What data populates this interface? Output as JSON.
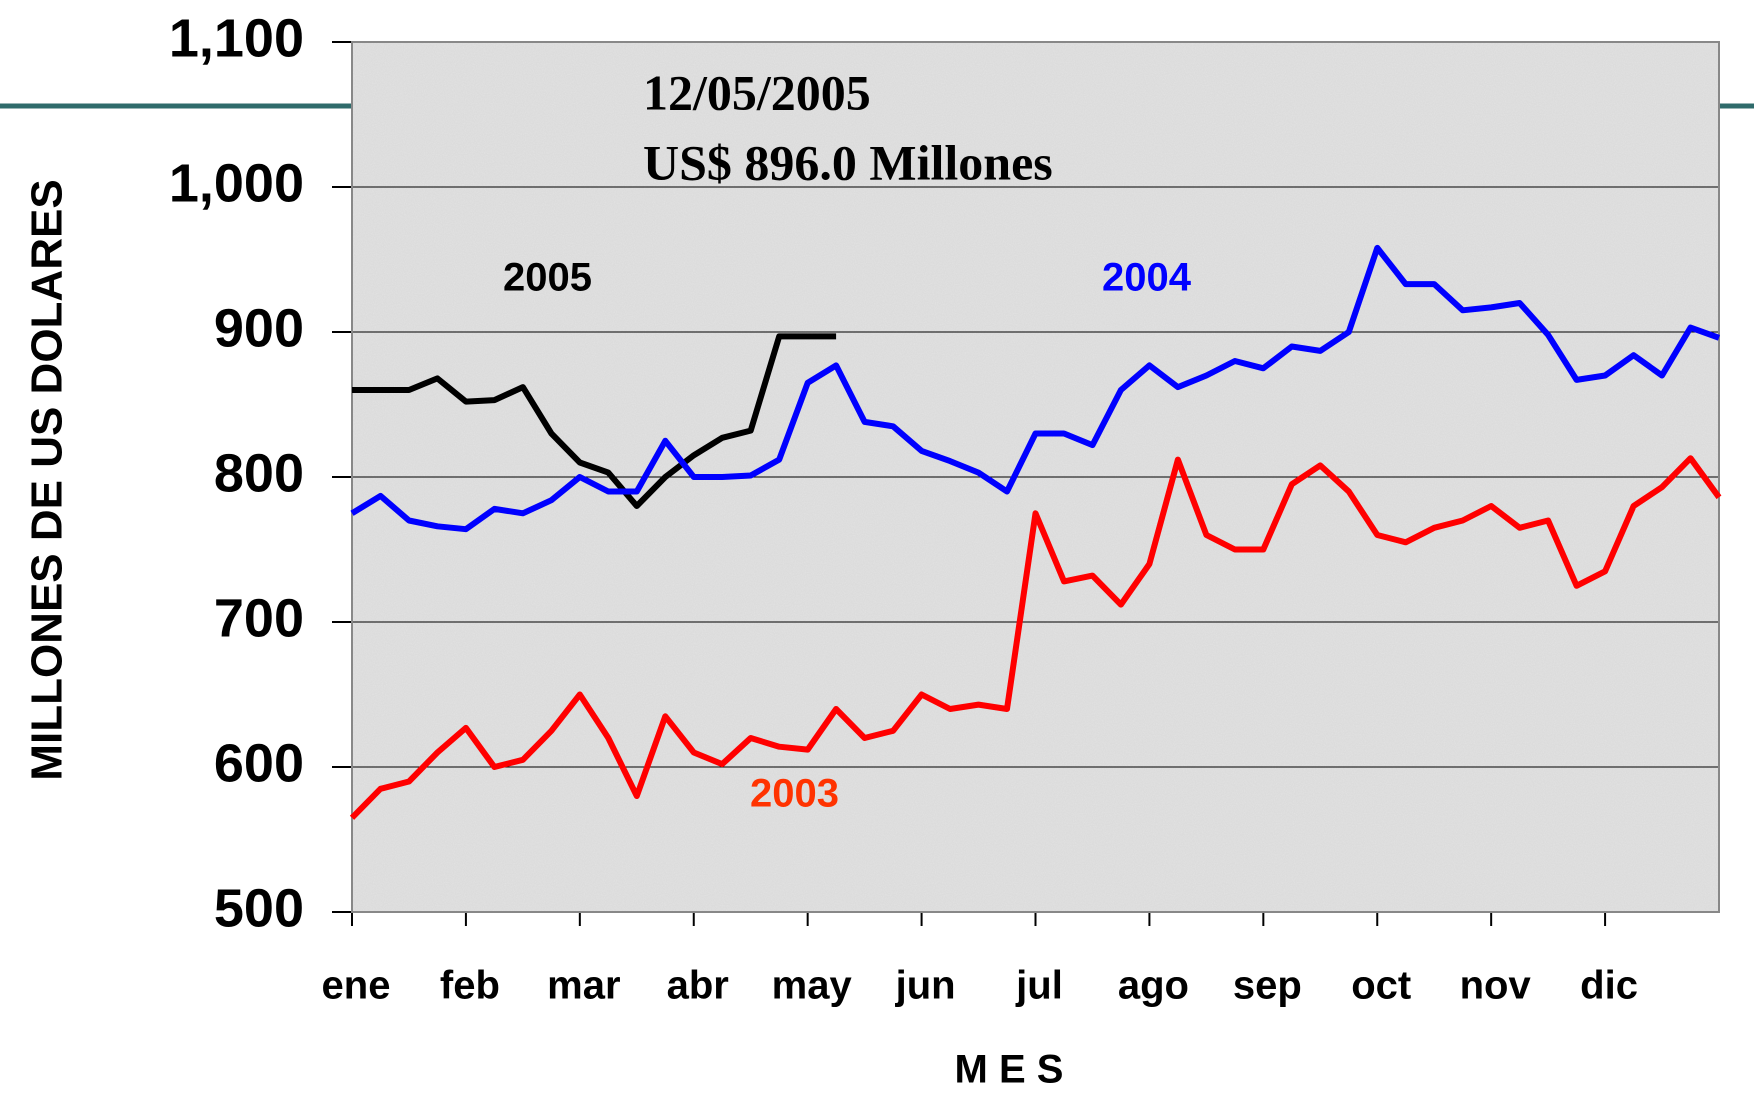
{
  "chart_data": {
    "type": "line",
    "title": "12/05/2005",
    "subtitle": "US$ 896.0 Millones",
    "y_label": "MILLONES DE US DOLARES",
    "x_label": "M E S",
    "categories": [
      "ene",
      null,
      null,
      null,
      "feb",
      null,
      null,
      null,
      "mar",
      null,
      null,
      null,
      "abr",
      null,
      null,
      null,
      "may",
      null,
      null,
      null,
      "jun",
      null,
      null,
      null,
      "jul",
      null,
      null,
      null,
      "ago",
      null,
      null,
      null,
      "sep",
      null,
      null,
      null,
      "oct",
      null,
      null,
      null,
      "nov",
      null,
      null,
      null,
      "dic",
      null,
      null,
      null,
      null
    ],
    "series": [
      {
        "name": "2005",
        "color": "#000000",
        "values": [
          860,
          860,
          860,
          868,
          852,
          853,
          862,
          830,
          810,
          803,
          780,
          800,
          815,
          827,
          832,
          897,
          897,
          897,
          null,
          null,
          null,
          null,
          null,
          null,
          null,
          null,
          null,
          null,
          null,
          null,
          null,
          null,
          null,
          null,
          null,
          null,
          null,
          null,
          null,
          null,
          null,
          null,
          null,
          null,
          null,
          null,
          null,
          null,
          null
        ]
      },
      {
        "name": "2004",
        "color": "#0000ff",
        "values": [
          775,
          787,
          770,
          766,
          764,
          778,
          775,
          784,
          800,
          790,
          790,
          825,
          800,
          800,
          801,
          812,
          865,
          877,
          838,
          835,
          818,
          811,
          803,
          790,
          830,
          830,
          822,
          860,
          877,
          862,
          870,
          880,
          875,
          890,
          887,
          900,
          958,
          933,
          933,
          915,
          917,
          920,
          898,
          867,
          870,
          884,
          870,
          903,
          896
        ]
      },
      {
        "name": "2003",
        "color": "#ff0000",
        "values": [
          565,
          585,
          590,
          610,
          627,
          600,
          605,
          625,
          650,
          620,
          580,
          635,
          610,
          602,
          620,
          614,
          612,
          640,
          620,
          625,
          650,
          640,
          643,
          640,
          775,
          728,
          732,
          712,
          740,
          812,
          760,
          750,
          750,
          795,
          808,
          790,
          760,
          755,
          765,
          770,
          780,
          765,
          770,
          725,
          735,
          780,
          793,
          813,
          786
        ]
      }
    ],
    "ylim": [
      500,
      1100
    ],
    "yticks": [
      500,
      600,
      700,
      800,
      900,
      {
        "value": 1000,
        "label": "1,000"
      },
      {
        "value": 1100,
        "label": "1,100"
      }
    ],
    "grid": true
  }
}
